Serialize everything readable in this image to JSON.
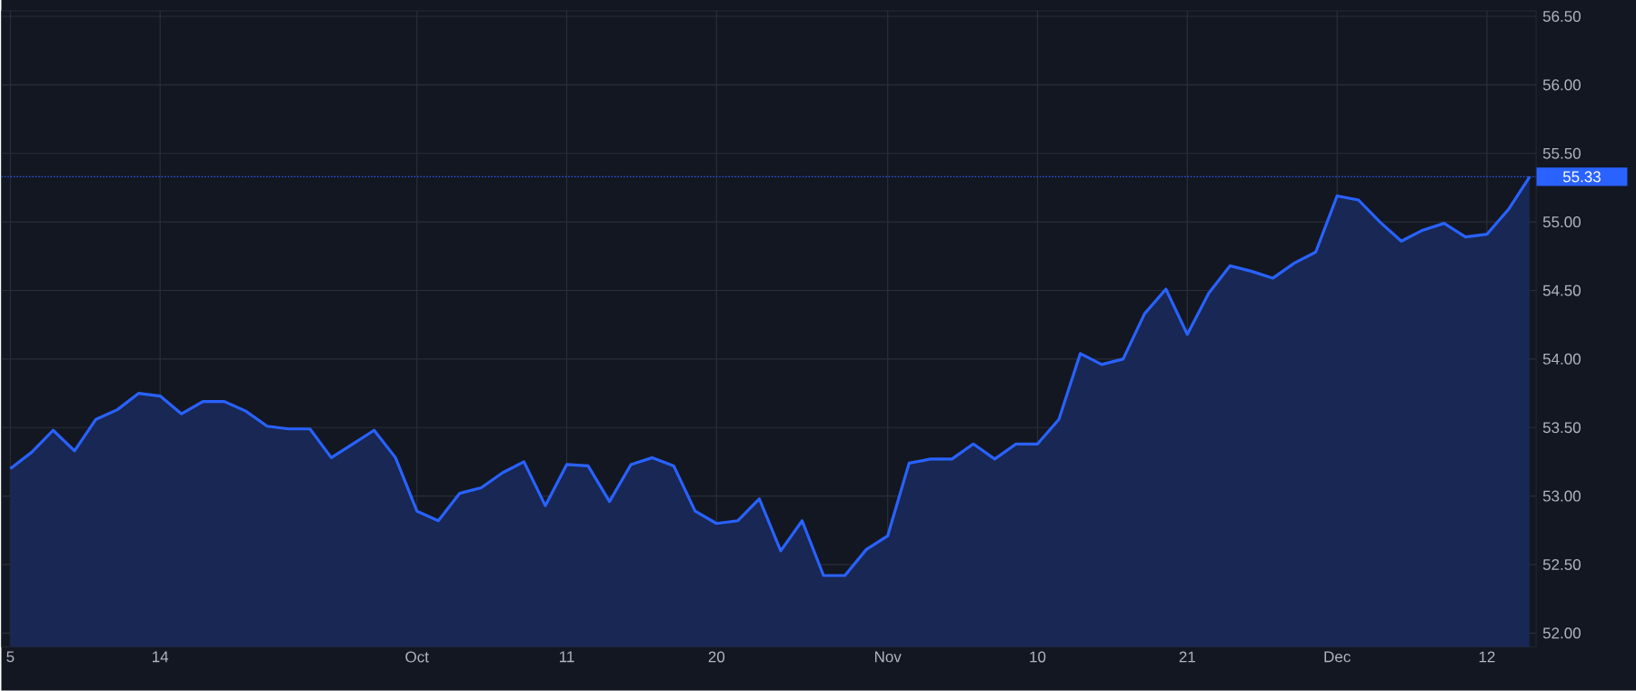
{
  "chart_data": {
    "type": "area",
    "categories": [
      "5",
      null,
      null,
      null,
      null,
      null,
      null,
      "14",
      null,
      null,
      null,
      null,
      null,
      null,
      null,
      null,
      null,
      null,
      null,
      "Oct",
      null,
      null,
      null,
      null,
      null,
      null,
      "11",
      null,
      null,
      null,
      null,
      null,
      null,
      "20",
      null,
      null,
      null,
      null,
      null,
      null,
      null,
      "Nov",
      null,
      null,
      null,
      null,
      null,
      null,
      "10",
      null,
      null,
      null,
      null,
      null,
      null,
      "21",
      null,
      null,
      null,
      null,
      null,
      null,
      "Dec",
      null,
      null,
      null,
      null,
      null,
      null,
      "12",
      null,
      null
    ],
    "series": [
      {
        "color": "#2962ff",
        "values": [
          53.2,
          53.32,
          53.48,
          53.33,
          53.56,
          53.63,
          53.75,
          53.73,
          53.6,
          53.69,
          53.69,
          53.62,
          53.51,
          53.49,
          53.49,
          53.28,
          53.38,
          53.48,
          53.28,
          52.89,
          52.82,
          53.02,
          53.06,
          53.17,
          53.25,
          52.93,
          53.23,
          53.22,
          52.96,
          53.23,
          53.28,
          53.22,
          52.89,
          52.8,
          52.82,
          52.98,
          52.6,
          52.82,
          52.42,
          52.42,
          52.61,
          52.71,
          53.24,
          53.27,
          53.27,
          53.38,
          53.27,
          53.38,
          53.38,
          53.56,
          54.04,
          53.96,
          54.0,
          54.33,
          54.51,
          54.18,
          54.48,
          54.68,
          54.64,
          54.59,
          54.7,
          54.78,
          55.19,
          55.16,
          55.0,
          54.86,
          54.94,
          54.99,
          54.89,
          54.91,
          55.09,
          55.33
        ]
      }
    ],
    "ylim": [
      51.9,
      56.54
    ],
    "yticks": [
      {
        "value": 52,
        "label": "52.00"
      },
      {
        "value": 52.5,
        "label": "52.50"
      },
      {
        "value": 53,
        "label": "53.00"
      },
      {
        "value": 53.5,
        "label": "53.50"
      },
      {
        "value": 54,
        "label": "54.00"
      },
      {
        "value": 54.5,
        "label": "54.50"
      },
      {
        "value": 55,
        "label": "55.00"
      },
      {
        "value": 55.5,
        "label": "55.50"
      },
      {
        "value": 56,
        "label": "56.00"
      },
      {
        "value": 56.5,
        "label": "56.50"
      }
    ],
    "grid": true,
    "ref_lines": [
      {
        "axis": "y",
        "value": 55.33,
        "label": "55.33",
        "color": "#2962ff",
        "line_style": "dotted"
      }
    ]
  }
}
